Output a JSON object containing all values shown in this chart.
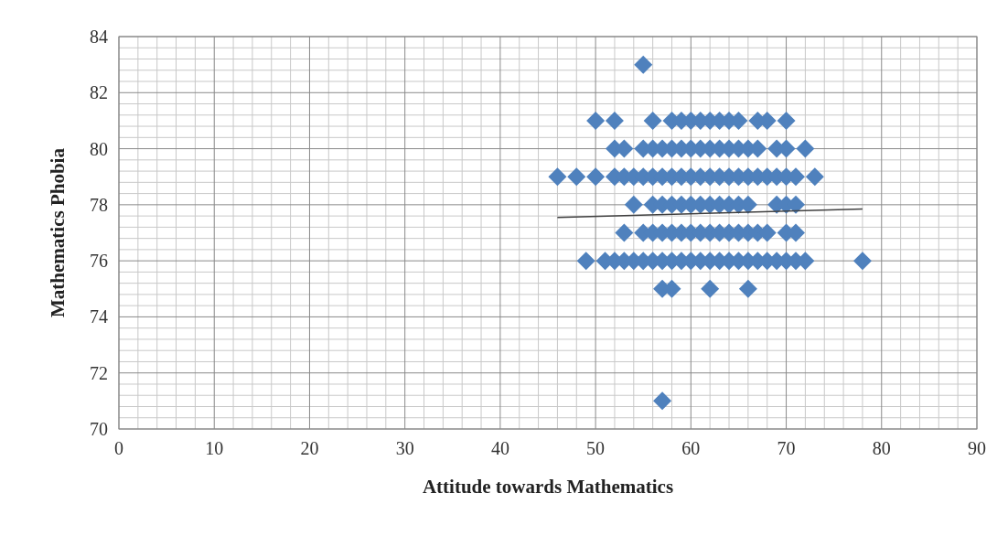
{
  "chart_data": {
    "type": "scatter",
    "xlabel": "Attitude towards Mathematics",
    "ylabel": "Mathematics Phobia",
    "xlim": [
      0,
      90
    ],
    "xticks": [
      0,
      10,
      20,
      30,
      40,
      50,
      60,
      70,
      80,
      90
    ],
    "ylim": [
      70,
      84
    ],
    "yticks": [
      70,
      72,
      74,
      76,
      78,
      80,
      82,
      84
    ],
    "grid": true,
    "series": [
      {
        "color": "#4f81bd",
        "marker": "diamond",
        "x": [
          55,
          50,
          52,
          56,
          58,
          59,
          60,
          61,
          62,
          63,
          64,
          65,
          67,
          68,
          70,
          52,
          53,
          55,
          56,
          57,
          58,
          59,
          60,
          61,
          62,
          63,
          64,
          65,
          66,
          67,
          69,
          70,
          72,
          46,
          48,
          50,
          52,
          53,
          54,
          55,
          56,
          57,
          58,
          59,
          60,
          61,
          62,
          63,
          64,
          65,
          66,
          67,
          68,
          69,
          70,
          71,
          73,
          54,
          56,
          57,
          58,
          59,
          60,
          61,
          62,
          63,
          64,
          65,
          66,
          69,
          70,
          71,
          53,
          55,
          56,
          57,
          58,
          59,
          60,
          61,
          62,
          63,
          64,
          65,
          66,
          67,
          68,
          70,
          71,
          49,
          51,
          52,
          53,
          54,
          55,
          56,
          57,
          58,
          59,
          60,
          61,
          62,
          63,
          64,
          65,
          66,
          67,
          68,
          69,
          70,
          71,
          72,
          78,
          57,
          58,
          62,
          66,
          57
        ],
        "values": [
          83,
          81,
          81,
          81,
          81,
          81,
          81,
          81,
          81,
          81,
          81,
          81,
          81,
          81,
          81,
          80,
          80,
          80,
          80,
          80,
          80,
          80,
          80,
          80,
          80,
          80,
          80,
          80,
          80,
          80,
          80,
          80,
          80,
          79,
          79,
          79,
          79,
          79,
          79,
          79,
          79,
          79,
          79,
          79,
          79,
          79,
          79,
          79,
          79,
          79,
          79,
          79,
          79,
          79,
          79,
          79,
          79,
          78,
          78,
          78,
          78,
          78,
          78,
          78,
          78,
          78,
          78,
          78,
          78,
          78,
          78,
          78,
          77,
          77,
          77,
          77,
          77,
          77,
          77,
          77,
          77,
          77,
          77,
          77,
          77,
          77,
          77,
          77,
          77,
          76,
          76,
          76,
          76,
          76,
          76,
          76,
          76,
          76,
          76,
          76,
          76,
          76,
          76,
          76,
          76,
          76,
          76,
          76,
          76,
          76,
          76,
          76,
          76,
          75,
          75,
          75,
          75,
          71
        ]
      },
      {
        "type": "line",
        "color": "#404040",
        "marker": "none",
        "x": [
          46,
          78
        ],
        "values": [
          77.55,
          77.85
        ]
      }
    ]
  }
}
